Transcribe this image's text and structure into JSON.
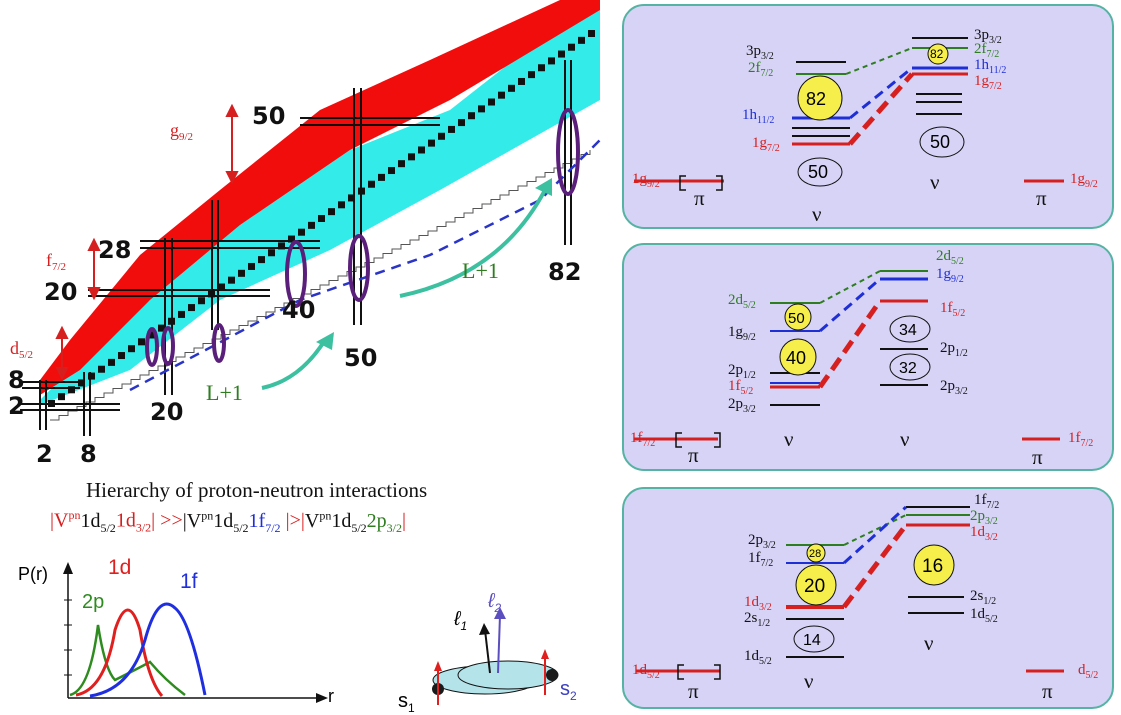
{
  "chart": {
    "magic_labels": [
      {
        "text": "2"
      },
      {
        "text": "8"
      },
      {
        "text": "20"
      },
      {
        "text": "28"
      },
      {
        "text": "50"
      },
      {
        "text": "2"
      },
      {
        "text": "8"
      },
      {
        "text": "20"
      },
      {
        "text": "40"
      },
      {
        "text": "50"
      },
      {
        "text": "82"
      }
    ],
    "gap_labels": {
      "g92": "g",
      "g92sub": "9/2",
      "f72": "f",
      "f72sub": "7/2",
      "d52": "d",
      "d52sub": "5/2"
    },
    "arrow_labels": [
      "L+1",
      "L+1"
    ]
  },
  "hierarchy": {
    "title": "Hierarchy of proton-neutron interactions",
    "eq": {
      "v": "V",
      "pn": "pn",
      "a": "1d",
      "a_sub": "5/2",
      "b": "1d",
      "b_sub": "3/2",
      "op1": ">>",
      "c": "1f",
      "c_sub": "7/2",
      "op2": ">",
      "d": "2p",
      "d_sub": "3/2"
    }
  },
  "radial": {
    "ylabel": "P(r)",
    "xlabel": "r",
    "labels": [
      "2p",
      "1d",
      "1f"
    ]
  },
  "spin": {
    "l1": "ℓ",
    "l1sub": "1",
    "l2": "ℓ",
    "l2sub": "2",
    "s1": "s",
    "s1sub": "1",
    "s2": "s",
    "s2sub": "2"
  },
  "panels": [
    {
      "left_pi": {
        "label": "1g",
        "sub": "9/2",
        "sym": "π"
      },
      "nu_left": "ν",
      "nu_right": "ν",
      "right_pi": {
        "label": "1g",
        "sub": "9/2",
        "sym": "π"
      },
      "left_levels": [
        {
          "label": "3p",
          "sub": "3/2",
          "color": "#111"
        },
        {
          "label": "2f",
          "sub": "7/2",
          "color": "#2e7d1f"
        },
        {
          "label": "1h",
          "sub": "11/2",
          "color": "#1f2fd6"
        },
        {
          "label": "1g",
          "sub": "7/2",
          "color": "#d61f1f"
        }
      ],
      "right_levels": [
        {
          "label": "3p",
          "sub": "3/2",
          "color": "#111"
        },
        {
          "label": "2f",
          "sub": "7/2",
          "color": "#2e7d1f"
        },
        {
          "label": "1h",
          "sub": "11/2",
          "color": "#1f2fd6"
        },
        {
          "label": "1g",
          "sub": "7/2",
          "color": "#d61f1f"
        }
      ],
      "circles": [
        "82",
        "50",
        "82",
        "50"
      ]
    },
    {
      "left_pi": {
        "label": "1f",
        "sub": "7/2",
        "sym": "π"
      },
      "nu_left": "ν",
      "nu_right": "ν",
      "right_pi": {
        "label": "1f",
        "sub": "7/2",
        "sym": "π"
      },
      "left_levels": [
        {
          "label": "2d",
          "sub": "5/2",
          "color": "#2e7d1f"
        },
        {
          "label": "1g",
          "sub": "9/2",
          "color": "#111"
        },
        {
          "label": "2p",
          "sub": "1/2",
          "color": "#111"
        },
        {
          "label": "1f",
          "sub": "5/2",
          "color": "#d61f1f"
        },
        {
          "label": "2p",
          "sub": "3/2",
          "color": "#111"
        }
      ],
      "right_levels": [
        {
          "label": "2d",
          "sub": "5/2",
          "color": "#2e7d1f"
        },
        {
          "label": "1g",
          "sub": "9/2",
          "color": "#1f2fd6"
        },
        {
          "label": "1f",
          "sub": "5/2",
          "color": "#d61f1f"
        },
        {
          "label": "2p",
          "sub": "1/2",
          "color": "#111"
        },
        {
          "label": "2p",
          "sub": "3/2",
          "color": "#111"
        }
      ],
      "circles": [
        "50",
        "40",
        "34",
        "32"
      ]
    },
    {
      "left_pi": {
        "label": "1d",
        "sub": "5/2",
        "sym": "π"
      },
      "nu_left": "ν",
      "nu_right": "ν",
      "right_pi": {
        "label": "d",
        "sub": "5/2",
        "sym": "π"
      },
      "left_levels": [
        {
          "label": "2p",
          "sub": "3/2",
          "color": "#111"
        },
        {
          "label": "1f",
          "sub": "7/2",
          "color": "#111"
        },
        {
          "label": "1d",
          "sub": "3/2",
          "color": "#d61f1f"
        },
        {
          "label": "2s",
          "sub": "1/2",
          "color": "#111"
        },
        {
          "label": "1d",
          "sub": "5/2",
          "color": "#111"
        }
      ],
      "right_levels": [
        {
          "label": "1f",
          "sub": "7/2",
          "color": "#111"
        },
        {
          "label": "2p",
          "sub": "3/2",
          "color": "#2e7d1f"
        },
        {
          "label": "1d",
          "sub": "3/2",
          "color": "#d61f1f"
        },
        {
          "label": "2s",
          "sub": "1/2",
          "color": "#111"
        },
        {
          "label": "1d",
          "sub": "5/2",
          "color": "#111"
        }
      ],
      "circles": [
        "28",
        "20",
        "16",
        "14"
      ]
    }
  ]
}
